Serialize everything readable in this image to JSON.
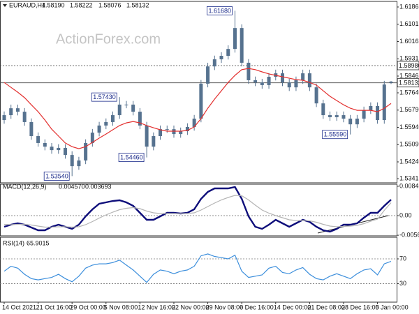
{
  "chart_data": [
    {
      "type": "candlestick",
      "title": "EURAUD,H4",
      "quote": [
        "1.58190",
        "1.58222",
        "1.58076",
        "1.58132"
      ],
      "watermark": "ActionForex.com",
      "color": "#56728f",
      "open": [
        1.563,
        1.5654,
        1.5688,
        1.5671,
        1.562,
        1.5551,
        1.5517,
        1.5499,
        1.5482,
        1.5493,
        1.5458,
        1.5403,
        1.5431,
        1.5517,
        1.5568,
        1.5603,
        1.562,
        1.5654,
        1.5706,
        1.5706,
        1.5671,
        1.5603,
        1.5499,
        1.5551,
        1.5585,
        1.5585,
        1.5561,
        1.5575,
        1.5596,
        1.5637,
        1.5809,
        1.5894,
        1.5929,
        1.5946,
        1.598,
        1.6083,
        1.5912,
        1.5826,
        1.5815,
        1.5802,
        1.5843,
        1.586,
        1.5815,
        1.5791,
        1.5826,
        1.586,
        1.5791,
        1.5712,
        1.5654,
        1.5644,
        1.5654,
        1.5637,
        1.5609,
        1.5637,
        1.5678,
        1.5699,
        1.563,
        1.5819
      ],
      "high": [
        1.5672,
        1.5706,
        1.5706,
        1.5689,
        1.5638,
        1.5569,
        1.5535,
        1.5517,
        1.5511,
        1.5511,
        1.5476,
        1.5449,
        1.5535,
        1.5586,
        1.5621,
        1.5638,
        1.5672,
        1.5743,
        1.5724,
        1.5724,
        1.5689,
        1.5621,
        1.5569,
        1.5603,
        1.5603,
        1.5603,
        1.5593,
        1.5614,
        1.5655,
        1.5827,
        1.5912,
        1.5947,
        1.5964,
        1.5998,
        1.6168,
        1.6101,
        1.593,
        1.5844,
        1.5833,
        1.5861,
        1.5878,
        1.5878,
        1.5833,
        1.5844,
        1.5878,
        1.5878,
        1.5809,
        1.573,
        1.5672,
        1.5672,
        1.5672,
        1.5655,
        1.5655,
        1.5696,
        1.5717,
        1.5717,
        1.5823,
        1.58222
      ],
      "low": [
        1.5612,
        1.5636,
        1.5653,
        1.5602,
        1.5533,
        1.5499,
        1.5481,
        1.5464,
        1.5464,
        1.544,
        1.5354,
        1.5385,
        1.5413,
        1.5499,
        1.555,
        1.5585,
        1.5602,
        1.5636,
        1.5688,
        1.5653,
        1.5585,
        1.5446,
        1.5481,
        1.5533,
        1.5567,
        1.5543,
        1.5543,
        1.5557,
        1.5578,
        1.5619,
        1.5791,
        1.5876,
        1.5911,
        1.5928,
        1.5962,
        1.5894,
        1.5808,
        1.5797,
        1.5784,
        1.5784,
        1.5825,
        1.5797,
        1.5773,
        1.5773,
        1.5808,
        1.5773,
        1.5694,
        1.5636,
        1.5626,
        1.5626,
        1.5619,
        1.5559,
        1.5591,
        1.5619,
        1.566,
        1.5612,
        1.5612,
        1.58076
      ],
      "close": [
        1.5654,
        1.5688,
        1.5671,
        1.562,
        1.5551,
        1.5517,
        1.5499,
        1.5482,
        1.5493,
        1.5458,
        1.5403,
        1.5431,
        1.5517,
        1.5568,
        1.5603,
        1.562,
        1.5654,
        1.5706,
        1.5706,
        1.5671,
        1.5603,
        1.5499,
        1.5551,
        1.5585,
        1.5585,
        1.5561,
        1.5575,
        1.5596,
        1.5637,
        1.5809,
        1.5894,
        1.5929,
        1.5946,
        1.598,
        1.6083,
        1.5912,
        1.5826,
        1.5815,
        1.5802,
        1.5843,
        1.586,
        1.5815,
        1.5791,
        1.5826,
        1.586,
        1.5791,
        1.5712,
        1.5654,
        1.5644,
        1.5654,
        1.5637,
        1.5609,
        1.5637,
        1.5678,
        1.5699,
        1.563,
        1.5805,
        1.58132
      ],
      "series": [
        {
          "color": "#e3302f",
          "values": [
            1.5815,
            1.5791,
            1.5767,
            1.574,
            1.5705,
            1.5671,
            1.563,
            1.5585,
            1.5551,
            1.5517,
            1.5499,
            1.5489,
            1.5499,
            1.552,
            1.5541,
            1.5561,
            1.5582,
            1.5603,
            1.5616,
            1.5623,
            1.5616,
            1.5603,
            1.5592,
            1.5582,
            1.5575,
            1.5575,
            1.5575,
            1.5579,
            1.5596,
            1.5637,
            1.5688,
            1.5733,
            1.5774,
            1.5815,
            1.585,
            1.5878,
            1.5884,
            1.5878,
            1.5867,
            1.5857,
            1.585,
            1.5843,
            1.5836,
            1.5829,
            1.5826,
            1.5815,
            1.5802,
            1.5774,
            1.5747,
            1.5726,
            1.5705,
            1.5688,
            1.5678,
            1.5678,
            1.5678,
            1.5671,
            1.5688,
            1.5712
          ]
        }
      ],
      "levels": [
        {
          "value": 1.5898,
          "label": "1.58980",
          "style": "dotted"
        },
        {
          "value": 1.58132,
          "label": "1.58132",
          "style": "solid"
        }
      ],
      "annotations": [
        {
          "value": 1.6168,
          "label": "1.61680"
        },
        {
          "value": 1.5743,
          "label": "1.57430"
        },
        {
          "value": 1.5446,
          "label": "1.54460"
        },
        {
          "value": 1.5354,
          "label": "1.53540"
        },
        {
          "value": 1.5559,
          "label": "1.55590"
        }
      ],
      "ylim": [
        1.5321,
        1.6214
      ],
      "yticks": [
        1.61865,
        1.61015,
        1.60165,
        1.59315,
        1.58465,
        {
          "value": 1.5764,
          "label": "1.57640"
        },
        {
          "value": 1.5679,
          "label": "1.56790"
        },
        {
          "value": 1.5594,
          "label": "1.55940"
        },
        {
          "value": 1.5509,
          "label": "1.55090"
        },
        {
          "value": 1.5424,
          "label": "1.54240"
        },
        1.53415
      ]
    },
    {
      "type": "line",
      "title": "MACD(12,26,9)",
      "readout": [
        "0.004570",
        "0.003693"
      ],
      "zero_line": true,
      "series": [
        {
          "color": "#0d0d7a",
          "values": [
            -0.0032,
            -0.0026,
            -0.0022,
            -0.0026,
            -0.0034,
            -0.0042,
            -0.0042,
            -0.0032,
            -0.0026,
            -0.0032,
            -0.0038,
            -0.0026,
            -0.0002,
            0.0018,
            0.0034,
            0.0038,
            0.0042,
            0.0044,
            0.0038,
            0.0028,
            0.0008,
            -0.0012,
            -0.0012,
            -0.0002,
            0.0008,
            0.0008,
            0.0006,
            0.0008,
            0.0018,
            0.0048,
            0.0068,
            0.0078,
            0.0078,
            0.0078,
            0.0082,
            0.0048,
            -0.0002,
            -0.0032,
            -0.0038,
            -0.0026,
            -0.0012,
            -0.0022,
            -0.0032,
            -0.0022,
            -0.0012,
            -0.0018,
            -0.0032,
            -0.0042,
            -0.0046,
            -0.0038,
            -0.0026,
            -0.0026,
            -0.0022,
            -0.0006,
            0.0008,
            0.0008,
            0.0028,
            0.00457
          ]
        },
        {
          "color": "#b4b4b4",
          "values": [
            -0.0025,
            -0.0026,
            -0.0025,
            -0.0025,
            -0.0027,
            -0.003,
            -0.0033,
            -0.0033,
            -0.0032,
            -0.0032,
            -0.0033,
            -0.0032,
            -0.0026,
            -0.0017,
            -0.0007,
            0.0002,
            0.001,
            0.0017,
            0.0021,
            0.0023,
            0.002,
            0.0013,
            0.0008,
            0.0006,
            0.0006,
            0.0006,
            0.0006,
            0.0006,
            0.0008,
            0.0016,
            0.0026,
            0.0036,
            0.0045,
            0.0052,
            0.0058,
            0.0057,
            0.0045,
            0.003,
            0.0016,
            0.0007,
            0.0,
            -0.0006,
            -0.0012,
            -0.0014,
            -0.0014,
            -0.0015,
            -0.0019,
            -0.0025,
            -0.003,
            -0.0032,
            -0.0031,
            -0.003,
            -0.0028,
            -0.0023,
            -0.0016,
            -0.001,
            0.0015,
            0.003693
          ]
        }
      ],
      "ylim": [
        -0.0058,
        0.009
      ],
      "yticks": [
        0.008411,
        {
          "value": 0,
          "label": "0.00"
        },
        -0.005625
      ]
    },
    {
      "type": "line",
      "title": "RSI(14)",
      "readout": "65.9015",
      "grid": "dotted",
      "series": [
        {
          "color": "#3d8fdc",
          "values": [
            50,
            58,
            55,
            45,
            38,
            36,
            38,
            40,
            45,
            38,
            33,
            42,
            55,
            60,
            62,
            62,
            64,
            68,
            60,
            52,
            42,
            32,
            45,
            52,
            50,
            46,
            50,
            52,
            58,
            75,
            78,
            74,
            72,
            70,
            76,
            50,
            40,
            42,
            44,
            55,
            58,
            48,
            46,
            52,
            56,
            45,
            38,
            36,
            42,
            46,
            42,
            38,
            46,
            52,
            54,
            44,
            62,
            65.9015
          ]
        }
      ],
      "ylim": [
        0,
        105
      ],
      "yticks": [
        70,
        30
      ],
      "categories": [
        "14 Oct 2021",
        null,
        null,
        null,
        null,
        "21 Oct 16:00",
        null,
        null,
        null,
        null,
        "29 Oct 00:00",
        null,
        null,
        null,
        null,
        "5 Nov 08:00",
        null,
        null,
        null,
        null,
        "12 Nov 16:00",
        null,
        null,
        null,
        null,
        "22 Nov 00:00",
        null,
        null,
        null,
        null,
        "29 Nov 08:00",
        null,
        null,
        null,
        null,
        "6 Dec 16:00",
        null,
        null,
        null,
        null,
        "14 Dec 00:00",
        null,
        null,
        null,
        null,
        "21 Dec 08:00",
        null,
        null,
        null,
        null,
        "28 Dec 16:00",
        null,
        null,
        null,
        null,
        "5 Jan 00:00",
        null,
        null
      ]
    }
  ]
}
